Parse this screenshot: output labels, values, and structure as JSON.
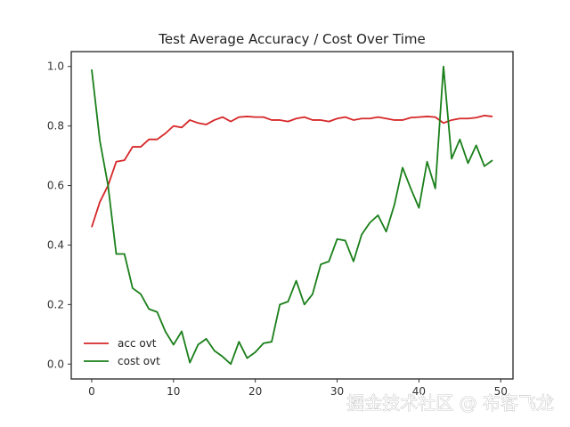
{
  "chart_data": {
    "type": "line",
    "title": "Test Average Accuracy / Cost Over Time",
    "xlabel": "",
    "ylabel": "",
    "xlim": [
      -2.5,
      51.5
    ],
    "ylim": [
      -0.05,
      1.05
    ],
    "x_ticks": [
      0,
      10,
      20,
      30,
      40,
      50
    ],
    "x_tick_labels": [
      "0",
      "10",
      "20",
      "30",
      "40",
      "50"
    ],
    "y_ticks": [
      0.0,
      0.2,
      0.4,
      0.6,
      0.8,
      1.0
    ],
    "y_tick_labels": [
      "0.0",
      "0.2",
      "0.4",
      "0.6",
      "0.8",
      "1.0"
    ],
    "grid": false,
    "legend_position": "lower-left",
    "x": [
      0,
      1,
      2,
      3,
      4,
      5,
      6,
      7,
      8,
      9,
      10,
      11,
      12,
      13,
      14,
      15,
      16,
      17,
      18,
      19,
      20,
      21,
      22,
      23,
      24,
      25,
      26,
      27,
      28,
      29,
      30,
      31,
      32,
      33,
      34,
      35,
      36,
      37,
      38,
      39,
      40,
      41,
      42,
      43,
      44,
      45,
      46,
      47,
      48,
      49
    ],
    "series": [
      {
        "name": "acc ovt",
        "color": "#d62728",
        "values": [
          0.46,
          0.545,
          0.6,
          0.68,
          0.685,
          0.73,
          0.73,
          0.755,
          0.755,
          0.775,
          0.8,
          0.795,
          0.82,
          0.81,
          0.805,
          0.82,
          0.83,
          0.815,
          0.83,
          0.832,
          0.83,
          0.83,
          0.82,
          0.82,
          0.815,
          0.825,
          0.83,
          0.82,
          0.82,
          0.815,
          0.825,
          0.83,
          0.82,
          0.825,
          0.825,
          0.83,
          0.825,
          0.82,
          0.82,
          0.828,
          0.83,
          0.832,
          0.83,
          0.81,
          0.82,
          0.825,
          0.825,
          0.828,
          0.835,
          0.832
        ]
      },
      {
        "name": "cost ovt",
        "color": "#1a7f1a",
        "values": [
          0.99,
          0.75,
          0.6,
          0.37,
          0.37,
          0.255,
          0.235,
          0.185,
          0.175,
          0.11,
          0.065,
          0.11,
          0.005,
          0.065,
          0.085,
          0.045,
          0.025,
          0.0,
          0.075,
          0.02,
          0.04,
          0.07,
          0.075,
          0.2,
          0.21,
          0.28,
          0.2,
          0.235,
          0.335,
          0.345,
          0.42,
          0.415,
          0.345,
          0.435,
          0.475,
          0.5,
          0.445,
          0.535,
          0.66,
          0.59,
          0.525,
          0.68,
          0.59,
          1.0,
          0.69,
          0.755,
          0.675,
          0.735,
          0.665,
          0.685
        ]
      }
    ]
  },
  "watermark": {
    "text": "掘金技术社区 @ 布客飞龙"
  }
}
